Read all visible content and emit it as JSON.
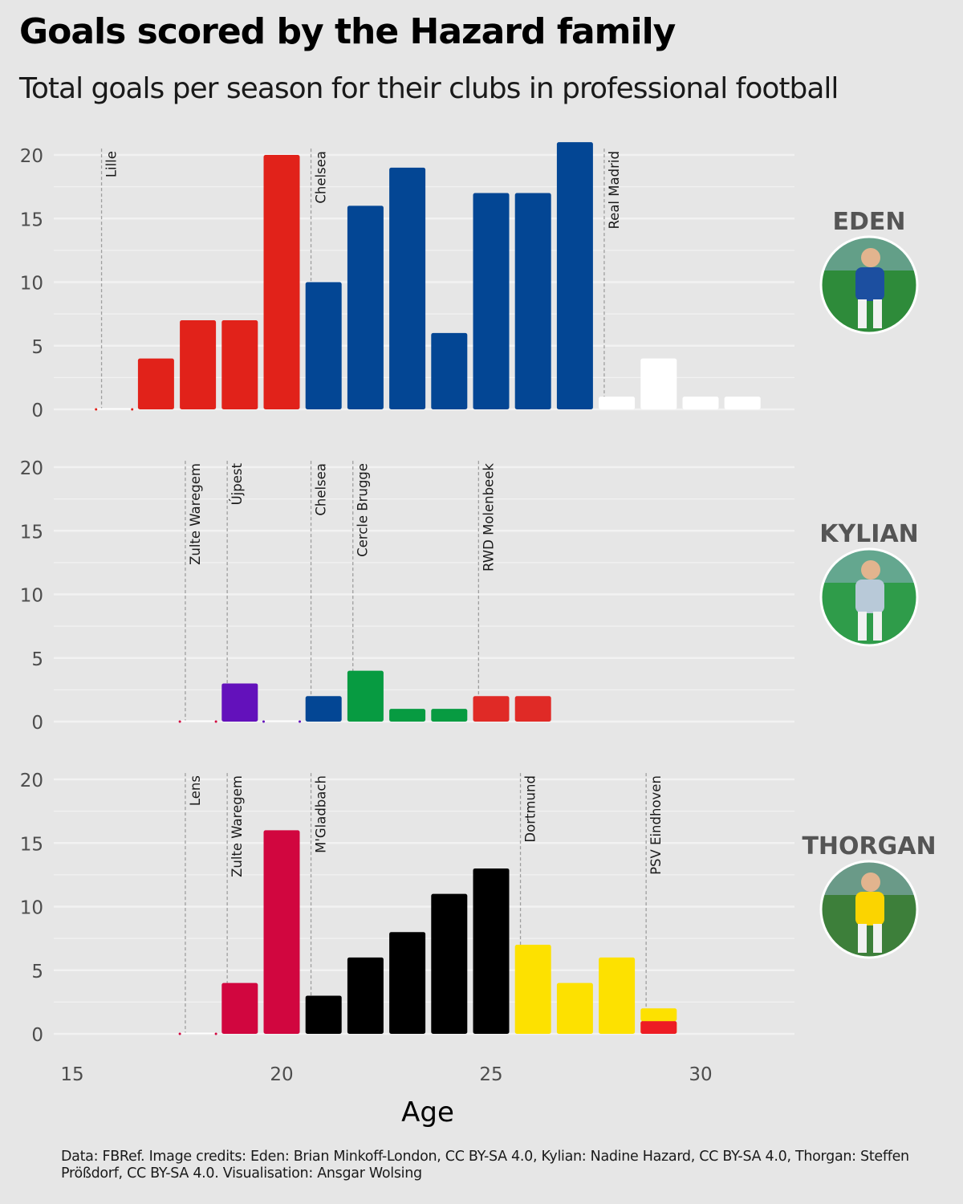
{
  "title": "Goals scored by the Hazard family",
  "subtitle": "Total goals per season for their clubs in professional football",
  "caption": "Data: FBRef. Image credits: Eden: Brian Minkoff-London, CC BY-SA 4.0, Kylian: Nadine Hazard, CC BY-SA 4.0, Thorgan: Steffen Prößdorf, CC BY-SA 4.0. Visualisation: Ansgar Wolsing",
  "colors": {
    "background": "#e6e6e6",
    "gridline": "#f2f2f2",
    "club_line": "#9e9e9e",
    "Lille": "#e1221a",
    "Chelsea": "#034694",
    "Real Madrid": "#ffffff",
    "Zulte Waregem": "#d1063f",
    "Ujpest": "#6311bb",
    "Cercle Brugge": "#079b41",
    "RWD Molenbeek": "#e02a26",
    "Lens": "#d1063f",
    "M'Gladbach": "#000000",
    "Dortmund": "#fde100",
    "PSV Eindhoven": "#ed1c24"
  },
  "chart_data": {
    "type": "bar",
    "xlabel": "Age",
    "ylabel": "",
    "xlim": [
      15,
      32.3
    ],
    "ylim": [
      0,
      21
    ],
    "x_ticks": [
      15,
      20,
      25,
      30
    ],
    "y_ticks": [
      0,
      5,
      10,
      15,
      20
    ],
    "grid": true,
    "panels": [
      {
        "name": "EDEN",
        "photo_colors": [
          "#2e8b3a",
          "#1c4fa0"
        ],
        "clubs": [
          {
            "name": "Lille",
            "start_age": 15.7
          },
          {
            "name": "Chelsea",
            "start_age": 20.7
          },
          {
            "name": "Real Madrid",
            "start_age": 27.7
          }
        ],
        "bars": [
          {
            "age": 16,
            "goals": 0,
            "club": "Lille"
          },
          {
            "age": 17,
            "goals": 4,
            "club": "Lille"
          },
          {
            "age": 18,
            "goals": 7,
            "club": "Lille"
          },
          {
            "age": 19,
            "goals": 7,
            "club": "Lille"
          },
          {
            "age": 20,
            "goals": 20,
            "club": "Lille"
          },
          {
            "age": 21,
            "goals": 10,
            "club": "Chelsea"
          },
          {
            "age": 22,
            "goals": 16,
            "club": "Chelsea"
          },
          {
            "age": 23,
            "goals": 19,
            "club": "Chelsea"
          },
          {
            "age": 24,
            "goals": 6,
            "club": "Chelsea"
          },
          {
            "age": 25,
            "goals": 17,
            "club": "Chelsea"
          },
          {
            "age": 26,
            "goals": 17,
            "club": "Chelsea"
          },
          {
            "age": 27,
            "goals": 21,
            "club": "Chelsea"
          },
          {
            "age": 28,
            "goals": 1,
            "club": "Real Madrid"
          },
          {
            "age": 29,
            "goals": 4,
            "club": "Real Madrid"
          },
          {
            "age": 30,
            "goals": 1,
            "club": "Real Madrid"
          },
          {
            "age": 31,
            "goals": 1,
            "club": "Real Madrid"
          }
        ]
      },
      {
        "name": "KYLIAN",
        "photo_colors": [
          "#2f9c4a",
          "#b8c9d8"
        ],
        "clubs": [
          {
            "name": "Zulte Waregem",
            "start_age": 17.7
          },
          {
            "name": "Újpest",
            "start_age": 18.7
          },
          {
            "name": "Chelsea",
            "start_age": 20.7
          },
          {
            "name": "Cercle Brugge",
            "start_age": 21.7
          },
          {
            "name": "RWD Molenbeek",
            "start_age": 24.7
          }
        ],
        "bars": [
          {
            "age": 18,
            "goals": 0,
            "club": "Zulte Waregem"
          },
          {
            "age": 19,
            "goals": 3,
            "club": "Ujpest"
          },
          {
            "age": 20,
            "goals": 0,
            "club": "Ujpest"
          },
          {
            "age": 21,
            "goals": 2,
            "club": "Chelsea"
          },
          {
            "age": 22,
            "goals": 4,
            "club": "Cercle Brugge"
          },
          {
            "age": 23,
            "goals": 1,
            "club": "Cercle Brugge"
          },
          {
            "age": 24,
            "goals": 1,
            "club": "Cercle Brugge"
          },
          {
            "age": 25,
            "goals": 2,
            "club": "RWD Molenbeek"
          },
          {
            "age": 26,
            "goals": 2,
            "club": "RWD Molenbeek"
          }
        ]
      },
      {
        "name": "THORGAN",
        "photo_colors": [
          "#3d7f3a",
          "#fbd400"
        ],
        "clubs": [
          {
            "name": "Lens",
            "start_age": 17.7
          },
          {
            "name": "Zulte Waregem",
            "start_age": 18.7
          },
          {
            "name": "M'Gladbach",
            "start_age": 20.7
          },
          {
            "name": "Dortmund",
            "start_age": 25.7
          },
          {
            "name": "PSV Eindhoven",
            "start_age": 28.7
          }
        ],
        "bars": [
          {
            "age": 18,
            "goals": 0,
            "club": "Lens"
          },
          {
            "age": 19,
            "goals": 4,
            "club": "Zulte Waregem"
          },
          {
            "age": 20,
            "goals": 16,
            "club": "Zulte Waregem"
          },
          {
            "age": 21,
            "goals": 3,
            "club": "M'Gladbach"
          },
          {
            "age": 22,
            "goals": 6,
            "club": "M'Gladbach"
          },
          {
            "age": 23,
            "goals": 8,
            "club": "M'Gladbach"
          },
          {
            "age": 24,
            "goals": 11,
            "club": "M'Gladbach"
          },
          {
            "age": 25,
            "goals": 13,
            "club": "M'Gladbach"
          },
          {
            "age": 26,
            "goals": 7,
            "club": "Dortmund"
          },
          {
            "age": 27,
            "goals": 4,
            "club": "Dortmund"
          },
          {
            "age": 28,
            "goals": 6,
            "club": "Dortmund"
          },
          {
            "age": 29,
            "goals": 1,
            "club": "Dortmund"
          },
          {
            "age": 29,
            "goals": 1,
            "club": "PSV Eindhoven",
            "stack_base": 0
          }
        ]
      }
    ]
  }
}
